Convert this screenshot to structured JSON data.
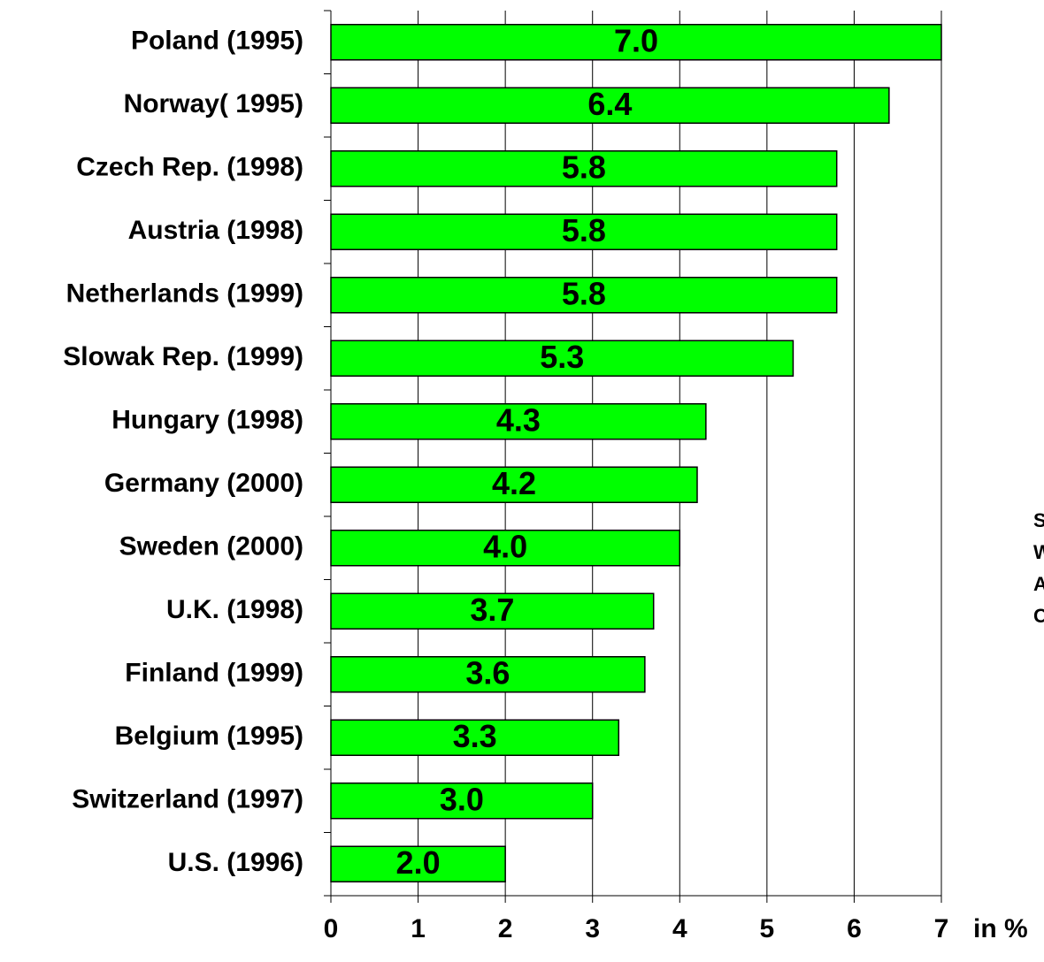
{
  "chart_data": {
    "type": "bar",
    "orientation": "horizontal",
    "categories": [
      "Poland (1995)",
      "Norway( 1995)",
      "Czech Rep. (1998)",
      "Austria (1998)",
      "Netherlands (1999)",
      "Slowak Rep. (1999)",
      "Hungary (1998)",
      "Germany (2000)",
      "Sweden (2000)",
      "U.K. (1998)",
      "Finland (1999)",
      "Belgium (1995)",
      "Switzerland (1997)",
      "U.S. (1996)"
    ],
    "values": [
      7.0,
      6.4,
      5.8,
      5.8,
      5.8,
      5.3,
      4.3,
      4.2,
      4.0,
      3.7,
      3.6,
      3.3,
      3.0,
      2.0
    ],
    "value_labels": [
      "7.0",
      "6.4",
      "5.8",
      "5.8",
      "5.8",
      "5.3",
      "4.3",
      "4.2",
      "4.0",
      "3.7",
      "3.6",
      "3.3",
      "3.0",
      "2.0"
    ],
    "color": "#00ff00",
    "xlim": [
      0,
      7
    ],
    "xticks": [
      0,
      1,
      2,
      3,
      4,
      5,
      6,
      7
    ],
    "grid": true,
    "x_label": "in %",
    "side_note": [
      "S",
      "W",
      "A",
      "C"
    ]
  }
}
